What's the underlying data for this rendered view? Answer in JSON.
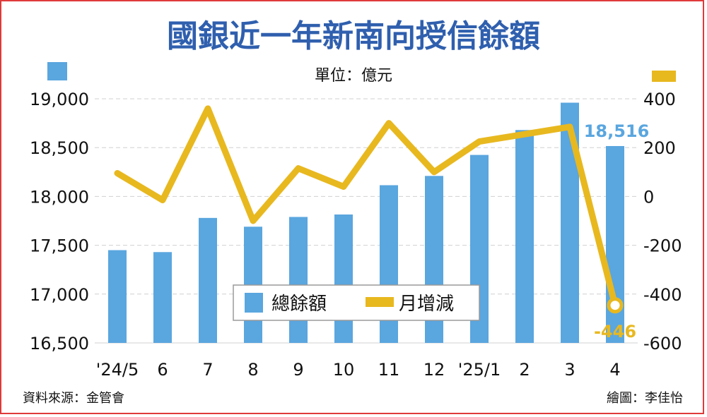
{
  "chart_data": {
    "type": "bar+line",
    "title": "國銀近一年新南向授信餘額",
    "unit": "單位：億元",
    "categories": [
      "'24/5",
      "6",
      "7",
      "8",
      "9",
      "10",
      "11",
      "12",
      "'25/1",
      "2",
      "3",
      "4"
    ],
    "series": [
      {
        "name": "總餘額",
        "type": "bar",
        "axis": "left",
        "color": "#5aa6df",
        "values": [
          17450,
          17430,
          17780,
          17690,
          17790,
          17815,
          18115,
          18210,
          18425,
          18680,
          18960,
          18516
        ]
      },
      {
        "name": "月增減",
        "type": "line",
        "axis": "right",
        "color": "#e8b81f",
        "values": [
          95,
          -15,
          360,
          -100,
          115,
          40,
          300,
          100,
          225,
          255,
          285,
          -446
        ]
      }
    ],
    "left_axis": {
      "ylim": [
        16500,
        19000
      ],
      "ticks": [
        16500,
        17000,
        17500,
        18000,
        18500,
        19000
      ],
      "tick_labels": [
        "16,500",
        "17,000",
        "17,500",
        "18,000",
        "18,500",
        "19,000"
      ]
    },
    "right_axis": {
      "ylim": [
        -600,
        400
      ],
      "ticks": [
        -600,
        -400,
        -200,
        0,
        200,
        400
      ],
      "tick_labels": [
        "-600",
        "-400",
        "-200",
        "0",
        "200",
        "400"
      ]
    },
    "annotations": {
      "last_bar_label": "18,516",
      "last_line_label": "-446"
    },
    "grid": true,
    "legend": {
      "position": "bottom-center"
    }
  },
  "footer": {
    "source": "資料來源：金管會",
    "credit": "繪圖：李佳怡"
  },
  "colors": {
    "title": "#2f5fae",
    "bar": "#5aa6df",
    "line": "#e8b81f",
    "border": "#e03a3a",
    "grid": "#d0d0d0",
    "text": "#111111"
  }
}
